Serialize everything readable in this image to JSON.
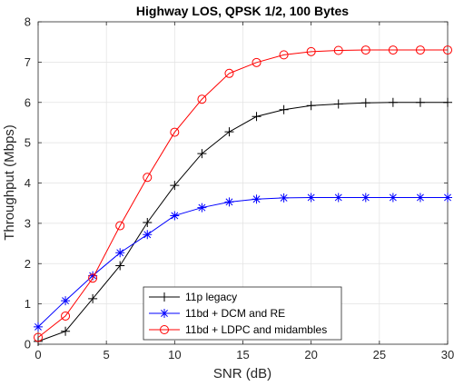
{
  "chart_data": {
    "type": "line",
    "title": "Highway LOS, QPSK 1/2, 100 Bytes",
    "xlabel": "SNR (dB)",
    "ylabel": "Throughput (Mbps)",
    "xlim": [
      0,
      30
    ],
    "ylim": [
      0,
      8
    ],
    "xticks": [
      0,
      5,
      10,
      15,
      20,
      25,
      30
    ],
    "yticks": [
      0,
      1,
      2,
      3,
      4,
      5,
      6,
      7,
      8
    ],
    "grid": true,
    "legend_position": "bottom-center",
    "x": [
      0,
      2,
      4,
      6,
      8,
      10,
      12,
      14,
      16,
      18,
      20,
      22,
      24,
      26,
      28,
      30
    ],
    "series": [
      {
        "name": "11p legacy",
        "color": "#000000",
        "marker": "plus",
        "values": [
          0.07,
          0.32,
          1.13,
          1.95,
          3.02,
          3.94,
          4.73,
          5.27,
          5.65,
          5.82,
          5.92,
          5.96,
          5.99,
          6.0,
          6.0,
          6.0
        ]
      },
      {
        "name": "11bd + DCM and RE",
        "color": "#0000ff",
        "marker": "asterisk",
        "values": [
          0.43,
          1.08,
          1.7,
          2.27,
          2.72,
          3.19,
          3.39,
          3.53,
          3.6,
          3.63,
          3.64,
          3.64,
          3.64,
          3.64,
          3.64,
          3.64
        ]
      },
      {
        "name": "11bd + LDPC and midambles",
        "color": "#ff0000",
        "marker": "circle",
        "values": [
          0.17,
          0.7,
          1.64,
          2.94,
          4.14,
          5.26,
          6.08,
          6.72,
          6.99,
          7.18,
          7.26,
          7.29,
          7.3,
          7.3,
          7.3,
          7.3
        ]
      }
    ]
  }
}
